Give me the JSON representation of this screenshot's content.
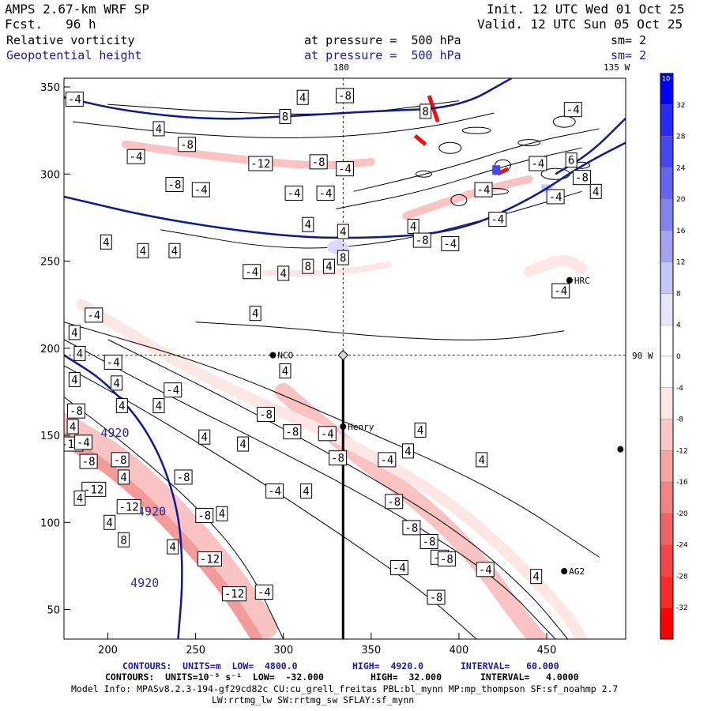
{
  "header": {
    "model": "AMPS 2.67-km WRF SP",
    "fcst": "Fcst.   96 h",
    "init": "Init. 12 UTC Wed 01 Oct 25",
    "valid": "Valid. 12 UTC Sun 05 Oct 25",
    "field1": "Relative vorticity",
    "field2": "Geopotential height",
    "pressure1": "at pressure =  500 hPa",
    "pressure2": "at pressure =  500 hPa",
    "sm1": "sm= 2",
    "sm2": "sm= 2"
  },
  "map_labels": {
    "lon180": "180",
    "lon135": "135 W",
    "lon90": "90 W"
  },
  "stations": [
    {
      "name": "NCO",
      "x": 294,
      "y": 196
    },
    {
      "name": "Henry",
      "x": 334,
      "y": 155
    },
    {
      "name": "HRC",
      "x": 463,
      "y": 239
    },
    {
      "name": "AG2",
      "x": 460,
      "y": 72
    },
    {
      "name": "",
      "x": 492,
      "y": 142
    }
  ],
  "chart_data": {
    "type": "contour",
    "title": "Relative vorticity / Geopotential height at 500 hPa",
    "xlim": [
      175,
      495
    ],
    "ylim": [
      33,
      355
    ],
    "x_ticks": [
      200,
      250,
      300,
      350,
      400,
      450
    ],
    "y_ticks": [
      50,
      100,
      150,
      200,
      250,
      300,
      350
    ],
    "cross_section": {
      "x": 334,
      "y_from": 33,
      "y_to": 196
    },
    "height_contours": [
      {
        "value": "4920",
        "points": [
          [
            175,
            196
          ],
          [
            200,
            180
          ],
          [
            225,
            150
          ],
          [
            240,
            110
          ],
          [
            243,
            70
          ],
          [
            240,
            33
          ]
        ]
      },
      {
        "value": "",
        "points": [
          [
            175,
            287
          ],
          [
            230,
            274
          ],
          [
            300,
            264
          ],
          [
            350,
            263
          ],
          [
            400,
            267
          ],
          [
            440,
            285
          ],
          [
            470,
            305
          ],
          [
            495,
            318
          ]
        ]
      },
      {
        "value": "",
        "points": [
          [
            175,
            344
          ],
          [
            210,
            336
          ],
          [
            260,
            331
          ],
          [
            300,
            333
          ],
          [
            350,
            336
          ],
          [
            400,
            338
          ],
          [
            430,
            355
          ]
        ]
      },
      {
        "value": "",
        "points": [
          [
            455,
            300
          ],
          [
            475,
            312
          ],
          [
            495,
            332
          ]
        ]
      }
    ],
    "height_labels": [
      {
        "text": "4920",
        "x": 204,
        "y": 149
      },
      {
        "text": "4920",
        "x": 225,
        "y": 104
      },
      {
        "text": "4920",
        "x": 221,
        "y": 63
      }
    ],
    "vort_bands": [
      {
        "value": -8,
        "points": [
          [
            175,
            156
          ],
          [
            210,
            135
          ],
          [
            245,
            100
          ],
          [
            270,
            70
          ],
          [
            290,
            40
          ]
        ],
        "width": 30
      },
      {
        "value": -12,
        "points": [
          [
            175,
            148
          ],
          [
            210,
            124
          ],
          [
            245,
            88
          ],
          [
            268,
            60
          ],
          [
            285,
            33
          ]
        ],
        "width": 14
      },
      {
        "value": -8,
        "points": [
          [
            300,
            175
          ],
          [
            340,
            140
          ],
          [
            380,
            110
          ],
          [
            410,
            80
          ],
          [
            435,
            45
          ],
          [
            445,
            33
          ]
        ],
        "width": 22
      },
      {
        "value": -4,
        "points": [
          [
            185,
            225
          ],
          [
            260,
            180
          ],
          [
            330,
            150
          ],
          [
            400,
            110
          ],
          [
            460,
            50
          ],
          [
            470,
            33
          ]
        ],
        "width": 14
      },
      {
        "value": -8,
        "points": [
          [
            210,
            317
          ],
          [
            260,
            310
          ],
          [
            320,
            304
          ],
          [
            350,
            307
          ]
        ],
        "width": 10
      },
      {
        "value": -4,
        "points": [
          [
            290,
            243
          ],
          [
            330,
            243
          ],
          [
            360,
            248
          ]
        ],
        "width": 8
      },
      {
        "value": -8,
        "points": [
          [
            370,
            276
          ],
          [
            410,
            290
          ],
          [
            440,
            297
          ]
        ],
        "width": 10
      },
      {
        "value": -4,
        "points": [
          [
            440,
            244
          ],
          [
            460,
            252
          ],
          [
            470,
            246
          ]
        ],
        "width": 14
      }
    ],
    "vort_line_contours": [
      [
        [
          175,
          205
        ],
        [
          230,
          175
        ],
        [
          300,
          140
        ],
        [
          360,
          108
        ],
        [
          420,
          70
        ],
        [
          455,
          33
        ]
      ],
      [
        [
          175,
          190
        ],
        [
          220,
          165
        ],
        [
          280,
          128
        ],
        [
          330,
          95
        ],
        [
          380,
          60
        ],
        [
          410,
          33
        ]
      ],
      [
        [
          200,
          205
        ],
        [
          270,
          170
        ],
        [
          340,
          132
        ],
        [
          400,
          95
        ],
        [
          440,
          60
        ],
        [
          462,
          33
        ]
      ],
      [
        [
          175,
          215
        ],
        [
          260,
          190
        ],
        [
          330,
          160
        ],
        [
          420,
          120
        ],
        [
          480,
          80
        ]
      ],
      [
        [
          175,
          172
        ],
        [
          210,
          145
        ],
        [
          250,
          110
        ],
        [
          280,
          75
        ],
        [
          300,
          33
        ]
      ],
      [
        [
          250,
          215
        ],
        [
          300,
          212
        ],
        [
          360,
          206
        ],
        [
          420,
          204
        ],
        [
          460,
          210
        ]
      ],
      [
        [
          230,
          268
        ],
        [
          300,
          256
        ],
        [
          360,
          260
        ],
        [
          420,
          275
        ],
        [
          470,
          290
        ]
      ],
      [
        [
          180,
          330
        ],
        [
          250,
          322
        ],
        [
          320,
          320
        ],
        [
          380,
          326
        ],
        [
          420,
          335
        ]
      ],
      [
        [
          200,
          340
        ],
        [
          270,
          335
        ],
        [
          340,
          334
        ],
        [
          400,
          342
        ]
      ],
      [
        [
          330,
          280
        ],
        [
          380,
          290
        ],
        [
          430,
          306
        ],
        [
          470,
          315
        ]
      ],
      [
        [
          340,
          290
        ],
        [
          390,
          302
        ],
        [
          440,
          318
        ],
        [
          480,
          326
        ]
      ]
    ],
    "vort_labels": [
      {
        "text": "-4",
        "x": 181,
        "y": 343
      },
      {
        "text": "4",
        "x": 311,
        "y": 344
      },
      {
        "text": "-8",
        "x": 335,
        "y": 345
      },
      {
        "text": "8",
        "x": 381,
        "y": 336
      },
      {
        "text": "-4",
        "x": 465,
        "y": 337
      },
      {
        "text": "8",
        "x": 301,
        "y": 333
      },
      {
        "text": "4",
        "x": 229,
        "y": 326
      },
      {
        "text": "-8",
        "x": 245,
        "y": 317
      },
      {
        "text": "-4",
        "x": 216,
        "y": 310
      },
      {
        "text": "-12",
        "x": 287,
        "y": 306
      },
      {
        "text": "-8",
        "x": 320,
        "y": 307
      },
      {
        "text": "-4",
        "x": 335,
        "y": 303
      },
      {
        "text": "-8",
        "x": 238,
        "y": 294
      },
      {
        "text": "-4",
        "x": 253,
        "y": 291
      },
      {
        "text": "-4",
        "x": 306,
        "y": 289
      },
      {
        "text": "-4",
        "x": 324,
        "y": 289
      },
      {
        "text": "-4",
        "x": 414,
        "y": 291
      },
      {
        "text": "-4",
        "x": 455,
        "y": 287
      },
      {
        "text": "6",
        "x": 464,
        "y": 308
      },
      {
        "text": "-4",
        "x": 445,
        "y": 306
      },
      {
        "text": "-8",
        "x": 470,
        "y": 298
      },
      {
        "text": "4",
        "x": 478,
        "y": 290
      },
      {
        "text": "4",
        "x": 314,
        "y": 271
      },
      {
        "text": "4",
        "x": 334,
        "y": 267
      },
      {
        "text": "4",
        "x": 374,
        "y": 270
      },
      {
        "text": "-4",
        "x": 422,
        "y": 274
      },
      {
        "text": "4",
        "x": 199,
        "y": 261
      },
      {
        "text": "4",
        "x": 220,
        "y": 256
      },
      {
        "text": "4",
        "x": 238,
        "y": 256
      },
      {
        "text": "-8",
        "x": 379,
        "y": 262
      },
      {
        "text": "-4",
        "x": 395,
        "y": 260
      },
      {
        "text": "8",
        "x": 334,
        "y": 252
      },
      {
        "text": "-4",
        "x": 282,
        "y": 244
      },
      {
        "text": "4",
        "x": 300,
        "y": 243
      },
      {
        "text": "8",
        "x": 314,
        "y": 247
      },
      {
        "text": "4",
        "x": 326,
        "y": 247
      },
      {
        "text": "-4",
        "x": 458,
        "y": 233
      },
      {
        "text": "-4",
        "x": 192,
        "y": 219
      },
      {
        "text": "4",
        "x": 284,
        "y": 220
      },
      {
        "text": "4",
        "x": 181,
        "y": 209
      },
      {
        "text": "4",
        "x": 184,
        "y": 197
      },
      {
        "text": "-4",
        "x": 203,
        "y": 192
      },
      {
        "text": "4",
        "x": 301,
        "y": 187
      },
      {
        "text": "4",
        "x": 181,
        "y": 182
      },
      {
        "text": "4",
        "x": 205,
        "y": 180
      },
      {
        "text": "-4",
        "x": 237,
        "y": 176
      },
      {
        "text": "4",
        "x": 208,
        "y": 167
      },
      {
        "text": "4",
        "x": 229,
        "y": 167
      },
      {
        "text": "-8",
        "x": 290,
        "y": 162
      },
      {
        "text": "-8",
        "x": 182,
        "y": 164
      },
      {
        "text": "4",
        "x": 180,
        "y": 155
      },
      {
        "text": "-8",
        "x": 305,
        "y": 152
      },
      {
        "text": "-4",
        "x": 325,
        "y": 151
      },
      {
        "text": "4",
        "x": 255,
        "y": 149
      },
      {
        "text": "4",
        "x": 277,
        "y": 145
      },
      {
        "text": "4",
        "x": 378,
        "y": 153
      },
      {
        "text": "-12",
        "x": 179,
        "y": 145
      },
      {
        "text": "-4",
        "x": 186,
        "y": 146
      },
      {
        "text": "4",
        "x": 371,
        "y": 141
      },
      {
        "text": "-8",
        "x": 331,
        "y": 137
      },
      {
        "text": "-4",
        "x": 359,
        "y": 136
      },
      {
        "text": "4",
        "x": 413,
        "y": 136
      },
      {
        "text": "-8",
        "x": 189,
        "y": 135
      },
      {
        "text": "-8",
        "x": 207,
        "y": 136
      },
      {
        "text": "4",
        "x": 209,
        "y": 126
      },
      {
        "text": "-12",
        "x": 192,
        "y": 119
      },
      {
        "text": "-8",
        "x": 243,
        "y": 126
      },
      {
        "text": "-4",
        "x": 295,
        "y": 118
      },
      {
        "text": "4",
        "x": 313,
        "y": 118
      },
      {
        "text": "-8",
        "x": 363,
        "y": 112
      },
      {
        "text": "4",
        "x": 184,
        "y": 114
      },
      {
        "text": "-12",
        "x": 212,
        "y": 109
      },
      {
        "text": "-8",
        "x": 255,
        "y": 104
      },
      {
        "text": "4",
        "x": 265,
        "y": 105
      },
      {
        "text": "-8",
        "x": 373,
        "y": 97
      },
      {
        "text": "4",
        "x": 201,
        "y": 100
      },
      {
        "text": "8",
        "x": 209,
        "y": 90
      },
      {
        "text": "4",
        "x": 237,
        "y": 86
      },
      {
        "text": "-8",
        "x": 383,
        "y": 89
      },
      {
        "text": "-4",
        "x": 389,
        "y": 80
      },
      {
        "text": "-12",
        "x": 258,
        "y": 79
      },
      {
        "text": "-8",
        "x": 393,
        "y": 79
      },
      {
        "text": "-4",
        "x": 366,
        "y": 74
      },
      {
        "text": "-4",
        "x": 415,
        "y": 73
      },
      {
        "text": "4",
        "x": 444,
        "y": 69
      },
      {
        "text": "-12",
        "x": 272,
        "y": 59
      },
      {
        "text": "-4",
        "x": 289,
        "y": 60
      },
      {
        "text": "-8",
        "x": 387,
        "y": 57
      }
    ],
    "colorbar": {
      "unit": "10⁻⁵ s⁻¹",
      "levels": [
        32,
        28,
        24,
        20,
        16,
        12,
        8,
        4,
        0,
        -4,
        -8,
        -12,
        -16,
        -20,
        -24,
        -28,
        -32
      ],
      "colors": [
        "#0000ff",
        "#2a2af5",
        "#4747f0",
        "#6464ec",
        "#8383ee",
        "#a3a3f2",
        "#c6c6f6",
        "#e6e6fb",
        "#ffffff",
        "#ffffff",
        "#fde6e6",
        "#fbc6c6",
        "#f6a3a3",
        "#f18383",
        "#ee6464",
        "#f24747",
        "#f72a2a",
        "#ff0000"
      ]
    }
  },
  "footer": {
    "line1_a": "CONTOURS:  UNITS=m  LOW=  4800.0",
    "line1_b": "HIGH=  4920.0",
    "line1_c": "INTERVAL=   60.000",
    "line2_a": "CONTOURS:  UNITS=10⁻⁵ s⁻¹  LOW=  -32.000",
    "line2_b": "HIGH=  32.000",
    "line2_c": "INTERVAL=   4.0000",
    "model_info": "Model Info: MPASv8.2.3-194-gf29cd82c CU:cu_grell_freitas PBL:bl_mynn MP:mp_thompson SF:sf_noahmp 2.7",
    "model_info2": "LW:rrtmg_lw SW:rrtmg_sw SFLAY:sf_mynn"
  }
}
